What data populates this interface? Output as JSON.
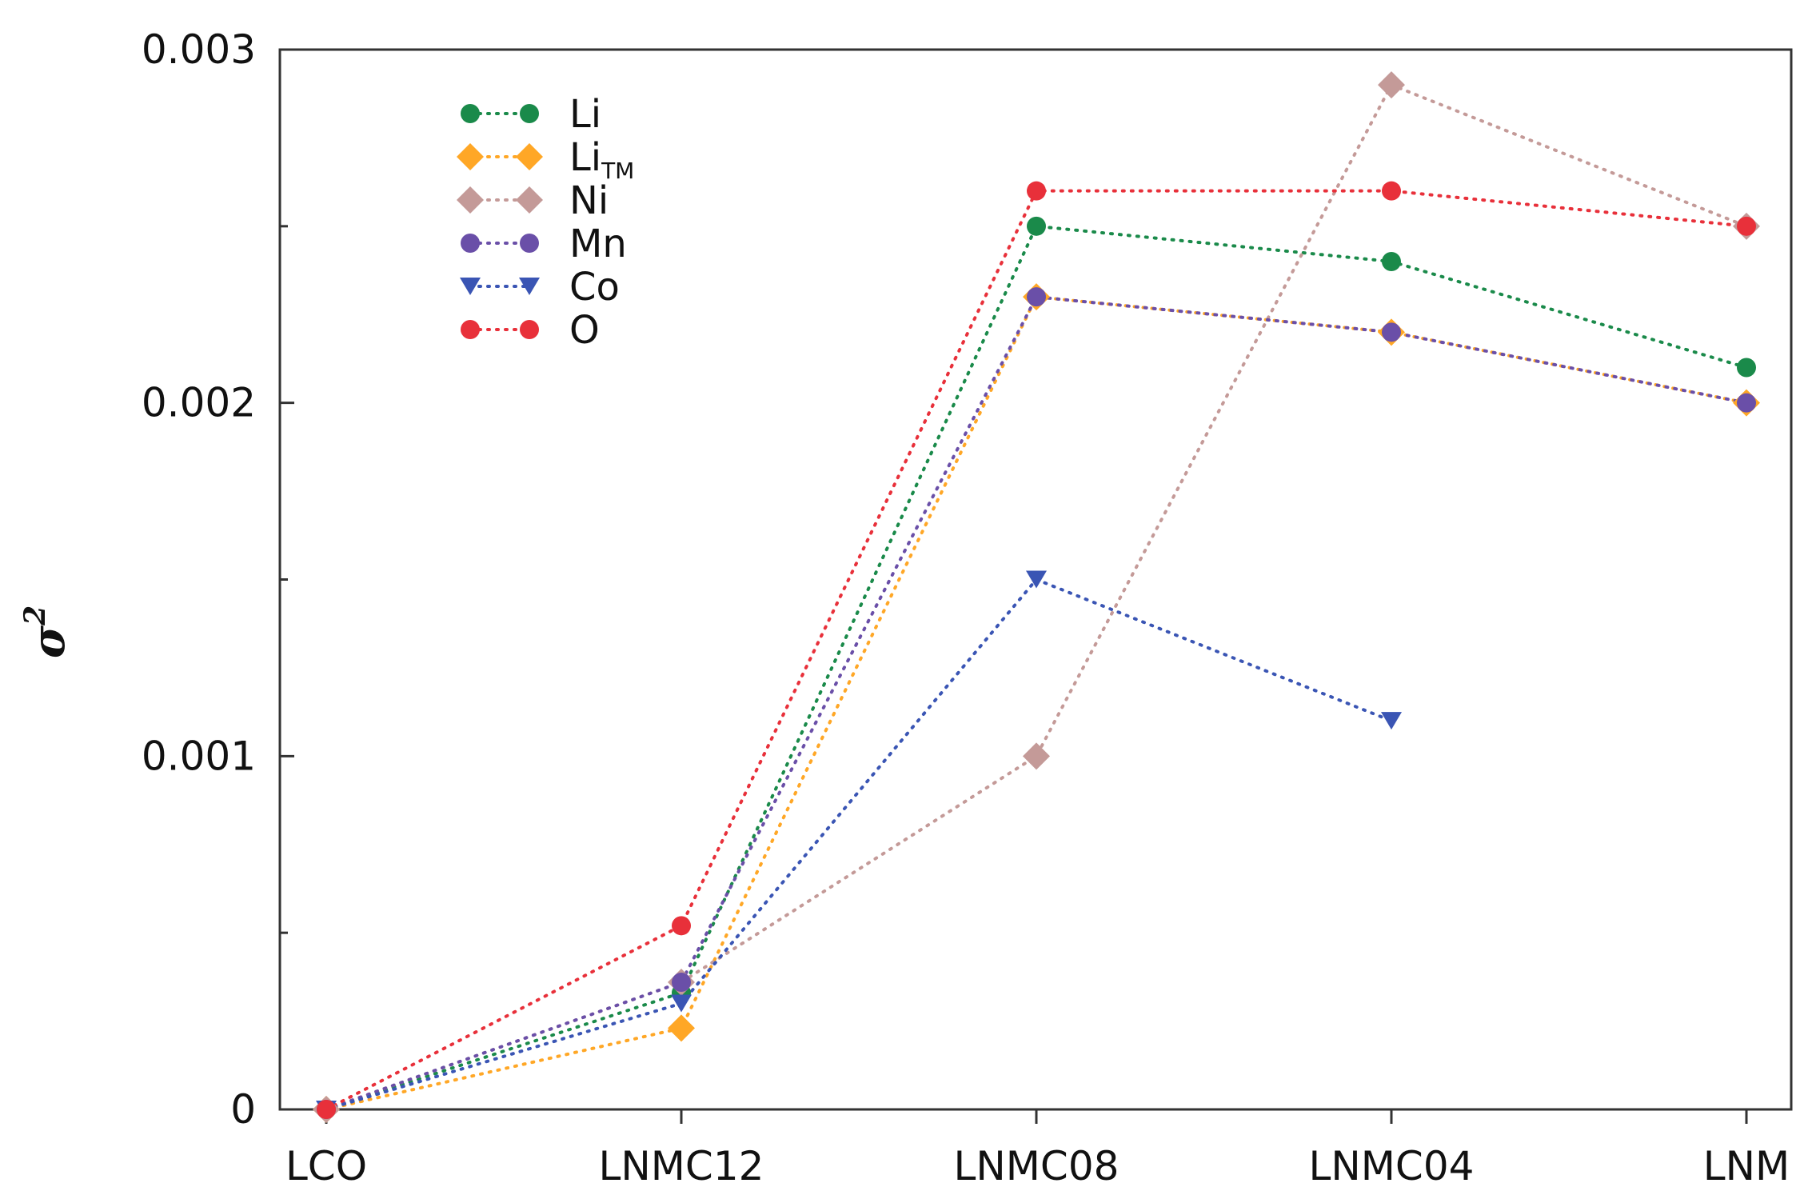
{
  "chart_data": {
    "type": "line",
    "title": "",
    "xlabel": "",
    "ylabel": "σ",
    "ylabel_superscript": "2",
    "categories": [
      "LCO",
      "LNMC12",
      "LNMC08",
      "LNMC04",
      "LNM"
    ],
    "ylim": [
      0,
      0.003
    ],
    "yticks": [
      {
        "value": 0,
        "label": "0"
      },
      {
        "value": 0.001,
        "label": "0.001"
      },
      {
        "value": 0.002,
        "label": "0.002"
      },
      {
        "value": 0.003,
        "label": "0.003"
      }
    ],
    "yticks_minor": [
      0.0005,
      0.0015,
      0.0025
    ],
    "grid": false,
    "legend_position": "top-left",
    "series": [
      {
        "name": "Li",
        "subscript": "",
        "marker": "circle",
        "color": "#1a8a4a",
        "values": [
          0,
          0.00033,
          0.0025,
          0.0024,
          0.0021
        ]
      },
      {
        "name": "Li",
        "subscript": "TM",
        "marker": "diamond",
        "color": "#ffa726",
        "values": [
          0,
          0.00023,
          0.0023,
          0.0022,
          0.002
        ]
      },
      {
        "name": "Ni",
        "subscript": "",
        "marker": "diamond",
        "color": "#c49a98",
        "values": [
          0,
          0.00036,
          0.001,
          0.0029,
          0.0025
        ]
      },
      {
        "name": "Mn",
        "subscript": "",
        "marker": "circle",
        "color": "#6a4fa8",
        "values": [
          0,
          0.00036,
          0.0023,
          0.0022,
          0.002
        ]
      },
      {
        "name": "Co",
        "subscript": "",
        "marker": "triangle-down",
        "color": "#3a55b4",
        "values": [
          0,
          0.0003,
          0.0015,
          0.0011,
          null
        ]
      },
      {
        "name": "O",
        "subscript": "",
        "marker": "circle",
        "color": "#e8303a",
        "values": [
          0,
          0.00052,
          0.0026,
          0.0026,
          0.0025
        ]
      }
    ]
  }
}
